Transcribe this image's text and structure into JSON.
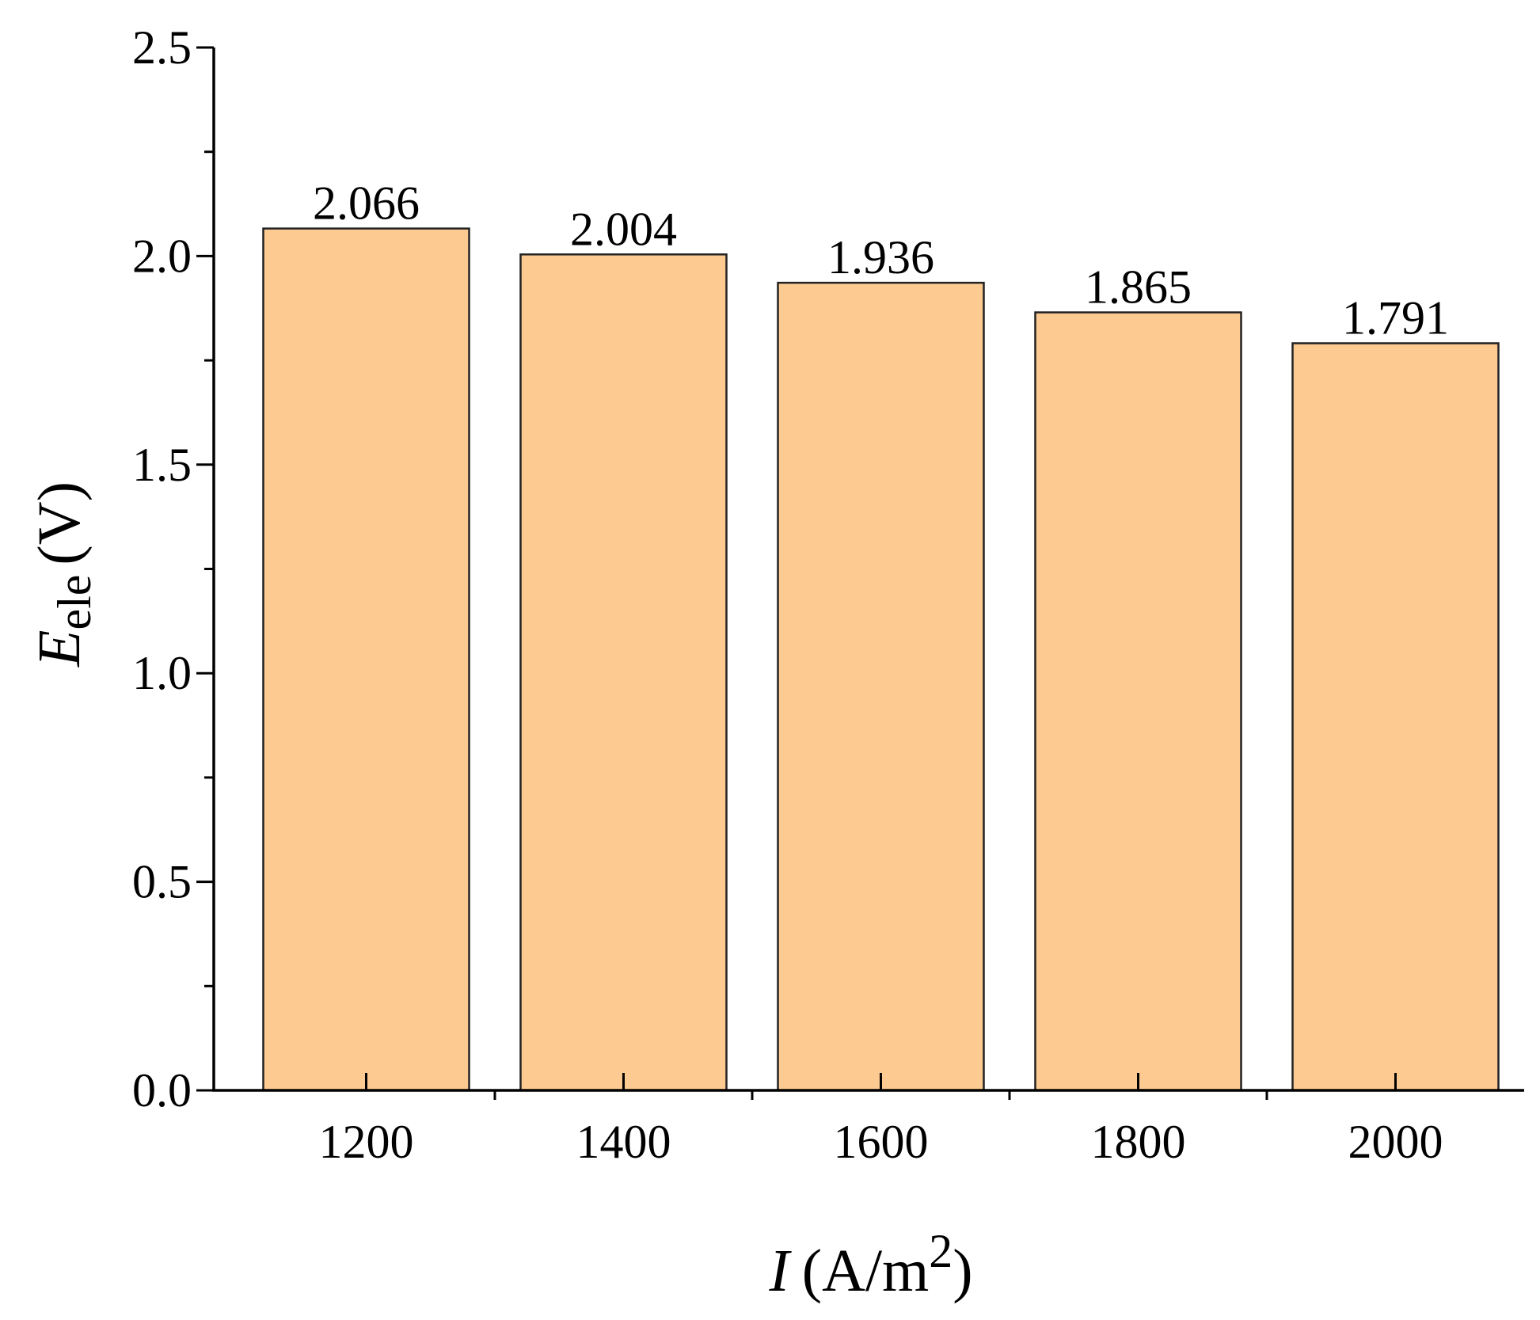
{
  "chart_data": {
    "type": "bar",
    "categories": [
      "1200",
      "1400",
      "1600",
      "1800",
      "2000"
    ],
    "values": [
      2.066,
      2.004,
      1.936,
      1.865,
      1.791
    ],
    "data_labels": [
      "2.066",
      "2.004",
      "1.936",
      "1.865",
      "1.791"
    ],
    "title": "",
    "xlabel": {
      "symbol": "I",
      "unit_prefix": "(A/m",
      "unit_superscript": "2",
      "unit_suffix": ")"
    },
    "ylabel": {
      "symbol": "E",
      "subscript": "ele",
      "unit": "(V)"
    },
    "ylim": [
      0,
      2.5
    ],
    "yticks": [
      "0.0",
      "0.5",
      "1.0",
      "1.5",
      "2.0",
      "2.5"
    ],
    "grid": false,
    "legend": "none",
    "colors": {
      "bar_fill": "#FDCB92",
      "bar_stroke": "#222222",
      "axis": "#000000"
    }
  }
}
